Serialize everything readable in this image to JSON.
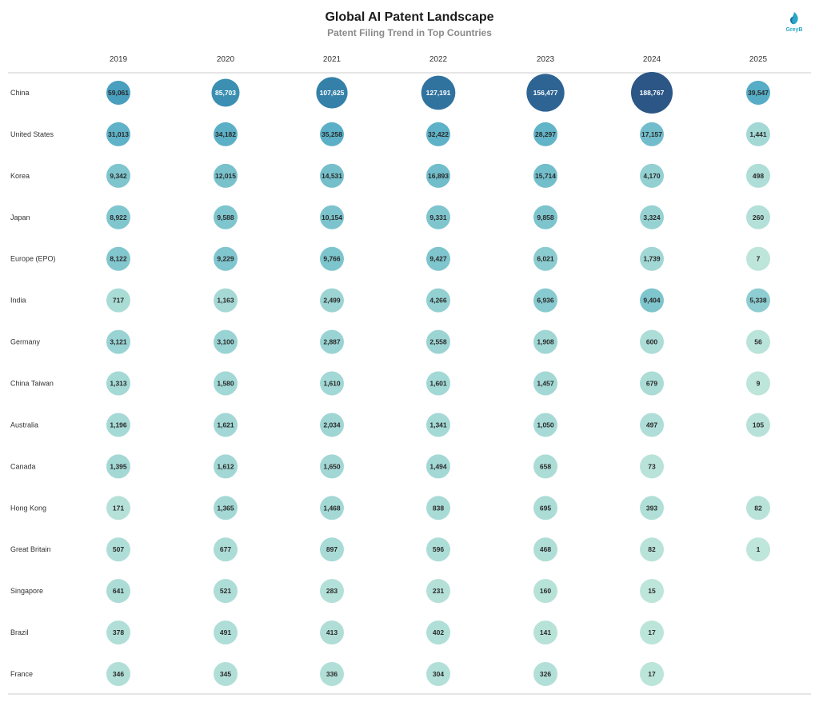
{
  "header": {
    "title": "Global AI Patent Landscape",
    "subtitle": "Patent Filing Trend in Top Countries",
    "logo_text": "GreyB",
    "logo_icon": "greyb-logo-icon",
    "brand_color": "#2aa6c9"
  },
  "chart_data": {
    "type": "bubble-table",
    "title": "Global AI Patent Landscape",
    "subtitle": "Patent Filing Trend in Top Countries",
    "x": [
      "2019",
      "2020",
      "2021",
      "2022",
      "2023",
      "2024",
      "2025"
    ],
    "countries": [
      "China",
      "United States",
      "Korea",
      "Japan",
      "Europe (EPO)",
      "India",
      "Germany",
      "China Taiwan",
      "Australia",
      "Canada",
      "Hong Kong",
      "Great Britain",
      "Singapore",
      "Brazil",
      "France"
    ],
    "values": [
      [
        59061,
        85703,
        107625,
        127191,
        156477,
        188767,
        39547
      ],
      [
        31013,
        34182,
        35258,
        32422,
        28297,
        17157,
        1441
      ],
      [
        9342,
        12015,
        14531,
        16893,
        15714,
        4170,
        498
      ],
      [
        8922,
        9588,
        10154,
        9331,
        9858,
        3324,
        260
      ],
      [
        8122,
        9229,
        9766,
        9427,
        6021,
        1739,
        7
      ],
      [
        717,
        1163,
        2499,
        4266,
        6936,
        9404,
        5338
      ],
      [
        3121,
        3100,
        2887,
        2558,
        1908,
        600,
        56
      ],
      [
        1313,
        1580,
        1610,
        1601,
        1457,
        679,
        9
      ],
      [
        1196,
        1621,
        2034,
        1341,
        1050,
        497,
        105
      ],
      [
        1395,
        1612,
        1650,
        1494,
        658,
        73,
        null
      ],
      [
        171,
        1365,
        1468,
        838,
        695,
        393,
        82
      ],
      [
        507,
        677,
        897,
        596,
        468,
        82,
        1
      ],
      [
        641,
        521,
        283,
        231,
        160,
        15,
        null
      ],
      [
        378,
        491,
        413,
        402,
        141,
        17,
        null
      ],
      [
        346,
        345,
        336,
        304,
        326,
        17,
        null
      ]
    ],
    "color_low": "#bfe6da",
    "color_high": "#2b5686"
  }
}
